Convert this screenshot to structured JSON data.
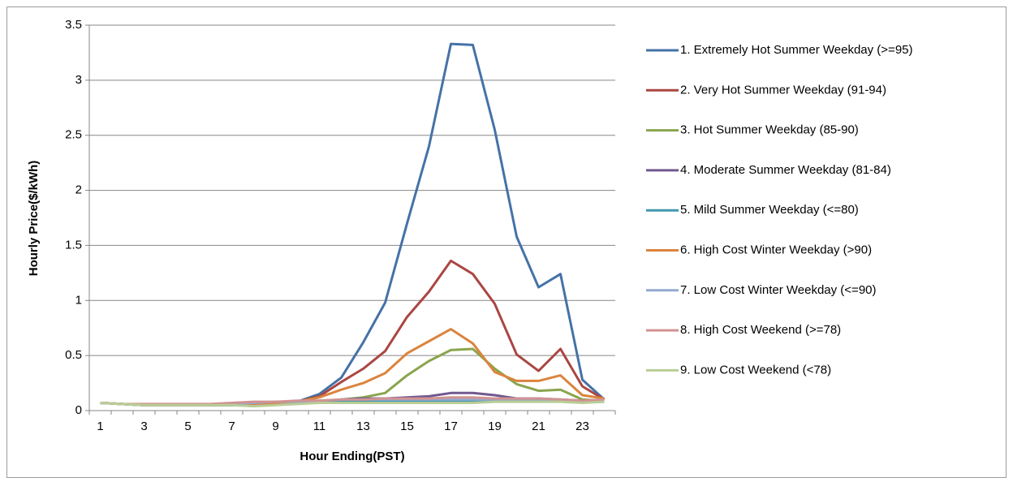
{
  "chart_data": {
    "type": "line",
    "x_label": "Hour Ending(PST)",
    "y_label": "Hourly Price($/kWh)",
    "categories": [
      1,
      null,
      3,
      null,
      5,
      null,
      7,
      null,
      9,
      null,
      11,
      null,
      13,
      null,
      15,
      null,
      17,
      null,
      19,
      null,
      21,
      null,
      23,
      null
    ],
    "ylim": [
      0,
      3.5
    ],
    "yticks": [
      0,
      0.5,
      1,
      1.5,
      2,
      2.5,
      3,
      3.5
    ],
    "grid": true,
    "legend": "right",
    "series": [
      {
        "name": "1. Extremely Hot Summer Weekday (>=95)",
        "color": "#4572A7",
        "values": [
          0.07,
          0.06,
          0.05,
          0.05,
          0.05,
          0.05,
          0.06,
          0.06,
          0.07,
          0.08,
          0.15,
          0.3,
          0.62,
          0.98,
          1.7,
          2.4,
          3.33,
          3.32,
          2.55,
          1.58,
          1.12,
          1.24,
          0.28,
          0.1
        ]
      },
      {
        "name": "2. Very Hot Summer Weekday (91-94)",
        "color": "#AA4643",
        "values": [
          0.07,
          0.06,
          0.05,
          0.05,
          0.05,
          0.05,
          0.06,
          0.06,
          0.07,
          0.08,
          0.13,
          0.26,
          0.38,
          0.54,
          0.85,
          1.08,
          1.36,
          1.24,
          0.97,
          0.51,
          0.36,
          0.56,
          0.22,
          0.1
        ]
      },
      {
        "name": "3. Hot Summer Weekday (85-90)",
        "color": "#89A54E",
        "values": [
          0.07,
          0.06,
          0.05,
          0.05,
          0.05,
          0.05,
          0.05,
          0.05,
          0.06,
          0.07,
          0.08,
          0.1,
          0.12,
          0.16,
          0.32,
          0.45,
          0.55,
          0.56,
          0.38,
          0.24,
          0.18,
          0.19,
          0.1,
          0.09
        ]
      },
      {
        "name": "4. Moderate Summer Weekday (81-84)",
        "color": "#71588F",
        "values": [
          0.07,
          0.06,
          0.05,
          0.05,
          0.05,
          0.05,
          0.05,
          0.06,
          0.06,
          0.07,
          0.08,
          0.1,
          0.11,
          0.11,
          0.12,
          0.13,
          0.16,
          0.16,
          0.14,
          0.11,
          0.11,
          0.1,
          0.09,
          0.09
        ]
      },
      {
        "name": "5. Mild Summer Weekday (<=80)",
        "color": "#4198AF",
        "values": [
          0.07,
          0.06,
          0.05,
          0.05,
          0.05,
          0.05,
          0.05,
          0.06,
          0.06,
          0.07,
          0.08,
          0.08,
          0.09,
          0.09,
          0.09,
          0.09,
          0.09,
          0.09,
          0.09,
          0.09,
          0.09,
          0.09,
          0.08,
          0.08
        ]
      },
      {
        "name": "6. High Cost Winter Weekday (>90)",
        "color": "#DB843D",
        "values": [
          0.07,
          0.06,
          0.05,
          0.05,
          0.05,
          0.05,
          0.06,
          0.06,
          0.07,
          0.08,
          0.12,
          0.19,
          0.25,
          0.34,
          0.52,
          0.63,
          0.74,
          0.61,
          0.35,
          0.27,
          0.27,
          0.32,
          0.14,
          0.11
        ]
      },
      {
        "name": "7. Low Cost Winter Weekday (<=90)",
        "color": "#93A9CF",
        "values": [
          0.07,
          0.06,
          0.05,
          0.05,
          0.05,
          0.05,
          0.06,
          0.07,
          0.08,
          0.08,
          0.09,
          0.1,
          0.1,
          0.1,
          0.1,
          0.1,
          0.1,
          0.1,
          0.1,
          0.1,
          0.1,
          0.09,
          0.08,
          0.09
        ]
      },
      {
        "name": "8. High Cost Weekend (>=78)",
        "color": "#D19392",
        "values": [
          0.07,
          0.06,
          0.06,
          0.06,
          0.06,
          0.06,
          0.07,
          0.08,
          0.08,
          0.09,
          0.09,
          0.1,
          0.1,
          0.11,
          0.11,
          0.11,
          0.12,
          0.12,
          0.11,
          0.11,
          0.11,
          0.1,
          0.09,
          0.1
        ]
      },
      {
        "name": "9. Low Cost Weekend (<78)",
        "color": "#B9CD96",
        "values": [
          0.07,
          0.06,
          0.05,
          0.05,
          0.05,
          0.05,
          0.05,
          0.04,
          0.05,
          0.06,
          0.07,
          0.07,
          0.07,
          0.07,
          0.07,
          0.07,
          0.07,
          0.07,
          0.08,
          0.08,
          0.08,
          0.08,
          0.07,
          0.08
        ]
      }
    ]
  }
}
